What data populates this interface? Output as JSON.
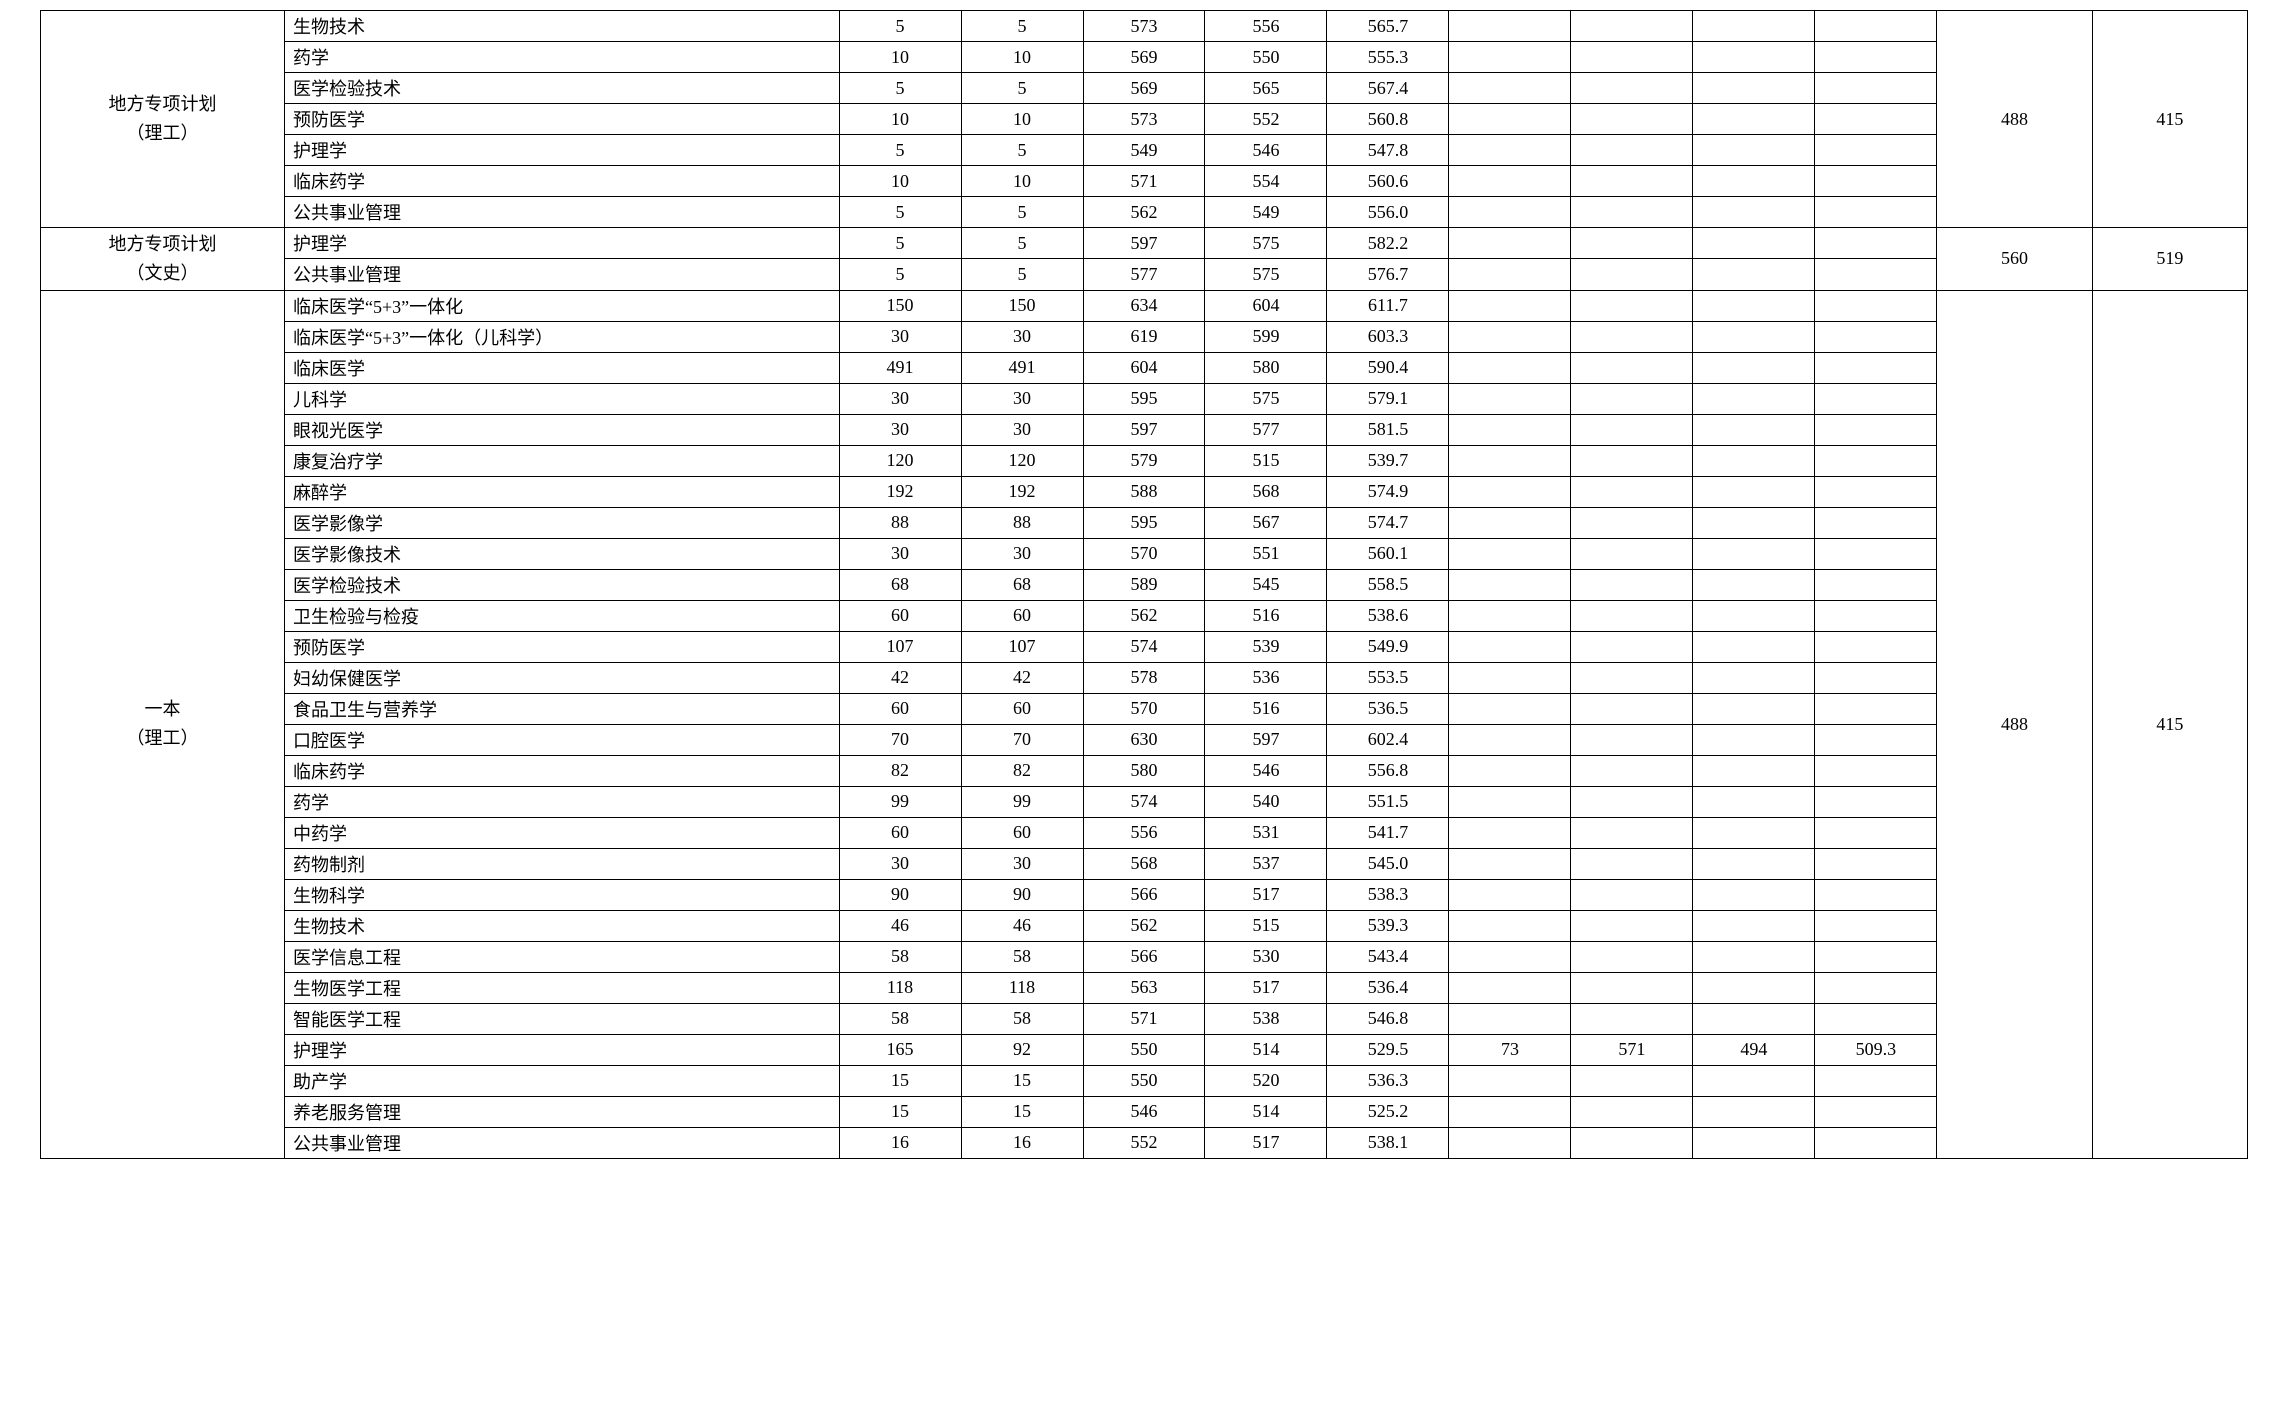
{
  "sections": [
    {
      "category_lines": [
        "地方专项计划",
        "（理工）"
      ],
      "right1": "488",
      "right2": "415",
      "rows": [
        {
          "major": "生物技术",
          "c": [
            "5",
            "5",
            "573",
            "556",
            "565.7",
            "",
            "",
            "",
            ""
          ]
        },
        {
          "major": "药学",
          "c": [
            "10",
            "10",
            "569",
            "550",
            "555.3",
            "",
            "",
            "",
            ""
          ]
        },
        {
          "major": "医学检验技术",
          "c": [
            "5",
            "5",
            "569",
            "565",
            "567.4",
            "",
            "",
            "",
            ""
          ]
        },
        {
          "major": "预防医学",
          "c": [
            "10",
            "10",
            "573",
            "552",
            "560.8",
            "",
            "",
            "",
            ""
          ]
        },
        {
          "major": "护理学",
          "c": [
            "5",
            "5",
            "549",
            "546",
            "547.8",
            "",
            "",
            "",
            ""
          ]
        },
        {
          "major": "临床药学",
          "c": [
            "10",
            "10",
            "571",
            "554",
            "560.6",
            "",
            "",
            "",
            ""
          ]
        },
        {
          "major": "公共事业管理",
          "c": [
            "5",
            "5",
            "562",
            "549",
            "556.0",
            "",
            "",
            "",
            ""
          ]
        }
      ]
    },
    {
      "category_lines": [
        "地方专项计划",
        "（文史）"
      ],
      "right1": "560",
      "right2": "519",
      "rows": [
        {
          "major": "护理学",
          "c": [
            "5",
            "5",
            "597",
            "575",
            "582.2",
            "",
            "",
            "",
            ""
          ]
        },
        {
          "major": "公共事业管理",
          "c": [
            "5",
            "5",
            "577",
            "575",
            "576.7",
            "",
            "",
            "",
            ""
          ]
        }
      ]
    },
    {
      "category_lines": [
        "一本",
        "（理工）"
      ],
      "right1": "488",
      "right2": "415",
      "rows": [
        {
          "major": "临床医学“5+3”一体化",
          "c": [
            "150",
            "150",
            "634",
            "604",
            "611.7",
            "",
            "",
            "",
            ""
          ]
        },
        {
          "major": "临床医学“5+3”一体化（儿科学）",
          "c": [
            "30",
            "30",
            "619",
            "599",
            "603.3",
            "",
            "",
            "",
            ""
          ]
        },
        {
          "major": "临床医学",
          "c": [
            "491",
            "491",
            "604",
            "580",
            "590.4",
            "",
            "",
            "",
            ""
          ]
        },
        {
          "major": "儿科学",
          "c": [
            "30",
            "30",
            "595",
            "575",
            "579.1",
            "",
            "",
            "",
            ""
          ]
        },
        {
          "major": "眼视光医学",
          "c": [
            "30",
            "30",
            "597",
            "577",
            "581.5",
            "",
            "",
            "",
            ""
          ]
        },
        {
          "major": "康复治疗学",
          "c": [
            "120",
            "120",
            "579",
            "515",
            "539.7",
            "",
            "",
            "",
            ""
          ]
        },
        {
          "major": "麻醉学",
          "c": [
            "192",
            "192",
            "588",
            "568",
            "574.9",
            "",
            "",
            "",
            ""
          ]
        },
        {
          "major": "医学影像学",
          "c": [
            "88",
            "88",
            "595",
            "567",
            "574.7",
            "",
            "",
            "",
            ""
          ]
        },
        {
          "major": "医学影像技术",
          "c": [
            "30",
            "30",
            "570",
            "551",
            "560.1",
            "",
            "",
            "",
            ""
          ]
        },
        {
          "major": "医学检验技术",
          "c": [
            "68",
            "68",
            "589",
            "545",
            "558.5",
            "",
            "",
            "",
            ""
          ]
        },
        {
          "major": "卫生检验与检疫",
          "c": [
            "60",
            "60",
            "562",
            "516",
            "538.6",
            "",
            "",
            "",
            ""
          ]
        },
        {
          "major": "预防医学",
          "c": [
            "107",
            "107",
            "574",
            "539",
            "549.9",
            "",
            "",
            "",
            ""
          ]
        },
        {
          "major": "妇幼保健医学",
          "c": [
            "42",
            "42",
            "578",
            "536",
            "553.5",
            "",
            "",
            "",
            ""
          ]
        },
        {
          "major": "食品卫生与营养学",
          "c": [
            "60",
            "60",
            "570",
            "516",
            "536.5",
            "",
            "",
            "",
            ""
          ]
        },
        {
          "major": "口腔医学",
          "c": [
            "70",
            "70",
            "630",
            "597",
            "602.4",
            "",
            "",
            "",
            ""
          ]
        },
        {
          "major": "临床药学",
          "c": [
            "82",
            "82",
            "580",
            "546",
            "556.8",
            "",
            "",
            "",
            ""
          ]
        },
        {
          "major": "药学",
          "c": [
            "99",
            "99",
            "574",
            "540",
            "551.5",
            "",
            "",
            "",
            ""
          ]
        },
        {
          "major": "中药学",
          "c": [
            "60",
            "60",
            "556",
            "531",
            "541.7",
            "",
            "",
            "",
            ""
          ]
        },
        {
          "major": "药物制剂",
          "c": [
            "30",
            "30",
            "568",
            "537",
            "545.0",
            "",
            "",
            "",
            ""
          ]
        },
        {
          "major": "生物科学",
          "c": [
            "90",
            "90",
            "566",
            "517",
            "538.3",
            "",
            "",
            "",
            ""
          ]
        },
        {
          "major": "生物技术",
          "c": [
            "46",
            "46",
            "562",
            "515",
            "539.3",
            "",
            "",
            "",
            ""
          ]
        },
        {
          "major": "医学信息工程",
          "c": [
            "58",
            "58",
            "566",
            "530",
            "543.4",
            "",
            "",
            "",
            ""
          ]
        },
        {
          "major": "生物医学工程",
          "c": [
            "118",
            "118",
            "563",
            "517",
            "536.4",
            "",
            "",
            "",
            ""
          ]
        },
        {
          "major": "智能医学工程",
          "c": [
            "58",
            "58",
            "571",
            "538",
            "546.8",
            "",
            "",
            "",
            ""
          ]
        },
        {
          "major": "护理学",
          "c": [
            "165",
            "92",
            "550",
            "514",
            "529.5",
            "73",
            "571",
            "494",
            "509.3"
          ]
        },
        {
          "major": "助产学",
          "c": [
            "15",
            "15",
            "550",
            "520",
            "536.3",
            "",
            "",
            "",
            ""
          ]
        },
        {
          "major": "养老服务管理",
          "c": [
            "15",
            "15",
            "546",
            "514",
            "525.2",
            "",
            "",
            "",
            ""
          ]
        },
        {
          "major": "公共事业管理",
          "c": [
            "16",
            "16",
            "552",
            "517",
            "538.1",
            "",
            "",
            "",
            ""
          ]
        }
      ]
    }
  ]
}
